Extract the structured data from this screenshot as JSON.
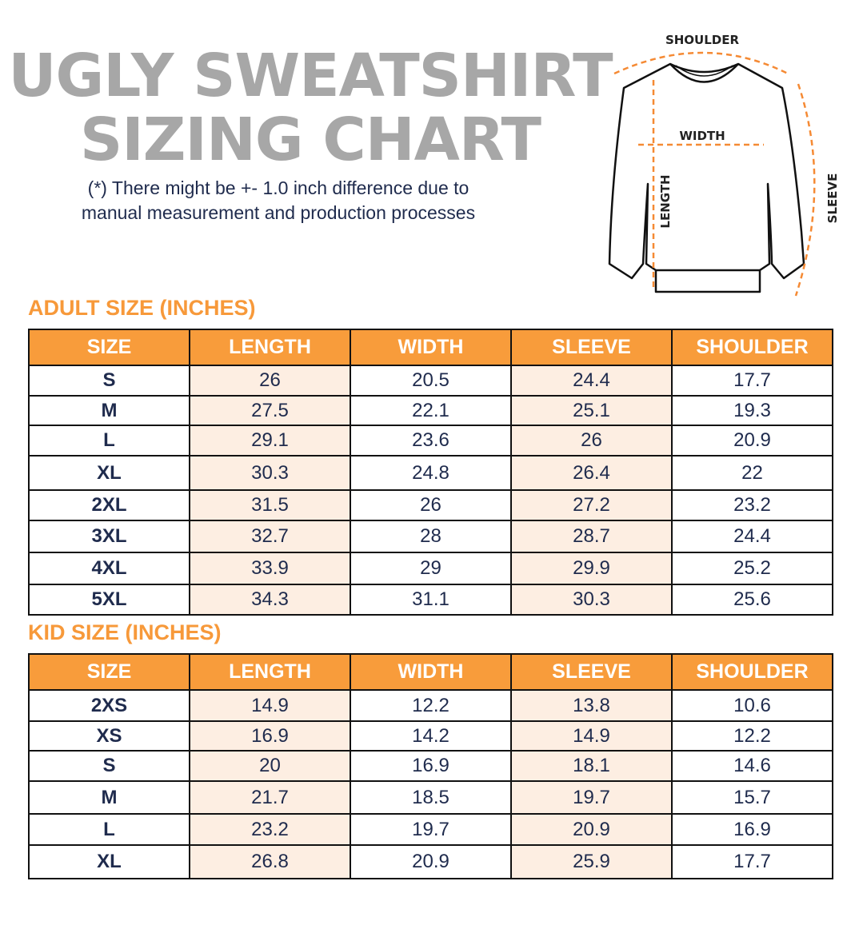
{
  "title_line1": "UGLY SWEATSHIRT",
  "title_line2": "SIZING CHART",
  "note_line1": "(*) There might be +- 1.0 inch difference due to",
  "note_line2": "manual measurement and production processes",
  "diagram": {
    "shoulder": "SHOULDER",
    "width": "WIDTH",
    "length": "LENGTH",
    "sleeve": "SLEEVE"
  },
  "colors": {
    "accent": "#f89c3b",
    "highlight": "#fdeee2",
    "text": "#1f2b4d",
    "title": "#a7a7a7"
  },
  "columns": [
    "SIZE",
    "LENGTH",
    "WIDTH",
    "SLEEVE",
    "SHOULDER"
  ],
  "adult": {
    "label": "ADULT SIZE (INCHES)",
    "rows": [
      [
        "S",
        "26",
        "20.5",
        "24.4",
        "17.7"
      ],
      [
        "M",
        "27.5",
        "22.1",
        "25.1",
        "19.3"
      ],
      [
        "L",
        "29.1",
        "23.6",
        "26",
        "20.9"
      ],
      [
        "XL",
        "30.3",
        "24.8",
        "26.4",
        "22"
      ],
      [
        "2XL",
        "31.5",
        "26",
        "27.2",
        "23.2"
      ],
      [
        "3XL",
        "32.7",
        "28",
        "28.7",
        "24.4"
      ],
      [
        "4XL",
        "33.9",
        "29",
        "29.9",
        "25.2"
      ],
      [
        "5XL",
        "34.3",
        "31.1",
        "30.3",
        "25.6"
      ]
    ]
  },
  "kid": {
    "label": "KID SIZE (INCHES)",
    "rows": [
      [
        "2XS",
        "14.9",
        "12.2",
        "13.8",
        "10.6"
      ],
      [
        "XS",
        "16.9",
        "14.2",
        "14.9",
        "12.2"
      ],
      [
        "S",
        "20",
        "16.9",
        "18.1",
        "14.6"
      ],
      [
        "M",
        "21.7",
        "18.5",
        "19.7",
        "15.7"
      ],
      [
        "L",
        "23.2",
        "19.7",
        "20.9",
        "16.9"
      ],
      [
        "XL",
        "26.8",
        "20.9",
        "25.9",
        "17.7"
      ]
    ]
  }
}
